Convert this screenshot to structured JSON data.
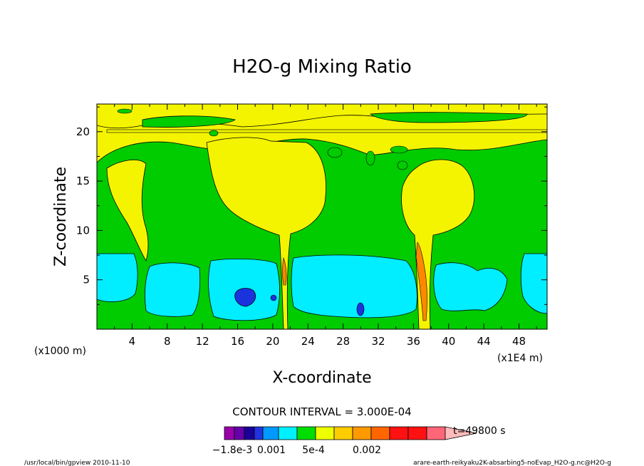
{
  "chart_data": {
    "type": "heatmap",
    "title": "H2O-g Mixing Ratio",
    "xlabel": "X-coordinate",
    "ylabel": "Z-coordinate",
    "x_unit": "(x1E4 m)",
    "y_unit": "(x1000 m)",
    "x_ticks": [
      "4",
      "8",
      "12",
      "16",
      "20",
      "24",
      "28",
      "32",
      "36",
      "40",
      "44",
      "48"
    ],
    "y_ticks": [
      "5",
      "10",
      "15",
      "20"
    ],
    "xlim": [
      0,
      51.2
    ],
    "ylim": [
      0,
      22.8
    ],
    "contour_interval_text": "CONTOUR INTERVAL = 3.000E-04",
    "time_label": "t=49800 s",
    "colorbar_labels": [
      "−1.8e-3",
      "0.001",
      "5e-4",
      "0.002"
    ],
    "colorbar_colors": [
      "#9900aa",
      "#6600aa",
      "#1a0099",
      "#2233dd",
      "#0099ff",
      "#00f0ff",
      "#00dd00",
      "#eeff00",
      "#ffcc00",
      "#ff9900",
      "#ff6600",
      "#ff1111",
      "#ff1111",
      "#ff6677"
    ],
    "colorbar_arrow_color": "#ffbbbb",
    "fill_colors": {
      "yellow": "#f4f400",
      "green": "#00cc00",
      "cyan": "#00eeff",
      "blue": "#1a33dd",
      "orange": "#ff8800"
    },
    "footer_left": "/usr/local/bin/gpview  2010-11-10",
    "footer_right": "arare-earth-reikyaku2K-absarbing5-noEvap_H2O-g.nc@H2O-g"
  }
}
